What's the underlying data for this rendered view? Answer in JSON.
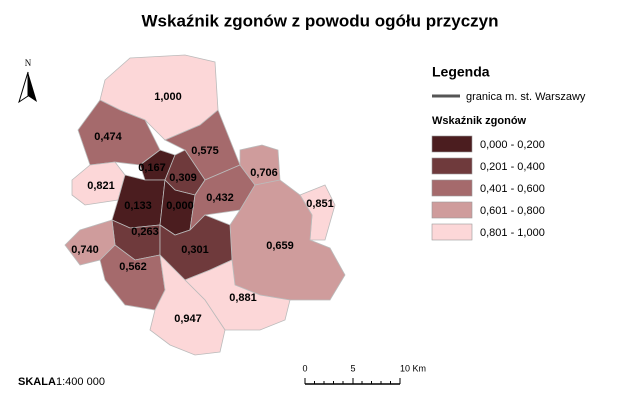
{
  "title": "Wskaźnik zgonów z powodu ogółu przyczyn",
  "north": "N",
  "legend": {
    "title": "Legenda",
    "boundary": "granica m. st. Warszawy",
    "subtitle": "Wskaźnik zgonów",
    "classes": [
      {
        "label": "0,000 - 0,200",
        "color": "#4b1d1f"
      },
      {
        "label": "0,201 - 0,400",
        "color": "#6f3a3c"
      },
      {
        "label": "0,401 - 0,600",
        "color": "#a56a6c"
      },
      {
        "label": "0,601 - 0,800",
        "color": "#cf9c9c"
      },
      {
        "label": "0,801 - 1,000",
        "color": "#fcd7d8"
      }
    ]
  },
  "districts": [
    {
      "label": "1,000",
      "color": "#fcd7d8"
    },
    {
      "label": "0,474",
      "color": "#a56a6c"
    },
    {
      "label": "0,575",
      "color": "#a56a6c"
    },
    {
      "label": "0,821",
      "color": "#fcd7d8"
    },
    {
      "label": "0,167",
      "color": "#4b1d1f"
    },
    {
      "label": "0,309",
      "color": "#6f3a3c"
    },
    {
      "label": "0,133",
      "color": "#4b1d1f"
    },
    {
      "label": "0,000",
      "color": "#4b1d1f"
    },
    {
      "label": "0,432",
      "color": "#a56a6c"
    },
    {
      "label": "0,706",
      "color": "#cf9c9c"
    },
    {
      "label": "0,851",
      "color": "#fcd7d8"
    },
    {
      "label": "0,659",
      "color": "#cf9c9c"
    },
    {
      "label": "0,263",
      "color": "#6f3a3c"
    },
    {
      "label": "0,301",
      "color": "#6f3a3c"
    },
    {
      "label": "0,740",
      "color": "#cf9c9c"
    },
    {
      "label": "0,562",
      "color": "#a56a6c"
    },
    {
      "label": "0,881",
      "color": "#fcd7d8"
    },
    {
      "label": "0,947",
      "color": "#fcd7d8"
    }
  ],
  "scale": {
    "label": "SKALA",
    "ratio": "1:400 000",
    "ticks": [
      "0",
      "5",
      "10 Km"
    ]
  }
}
